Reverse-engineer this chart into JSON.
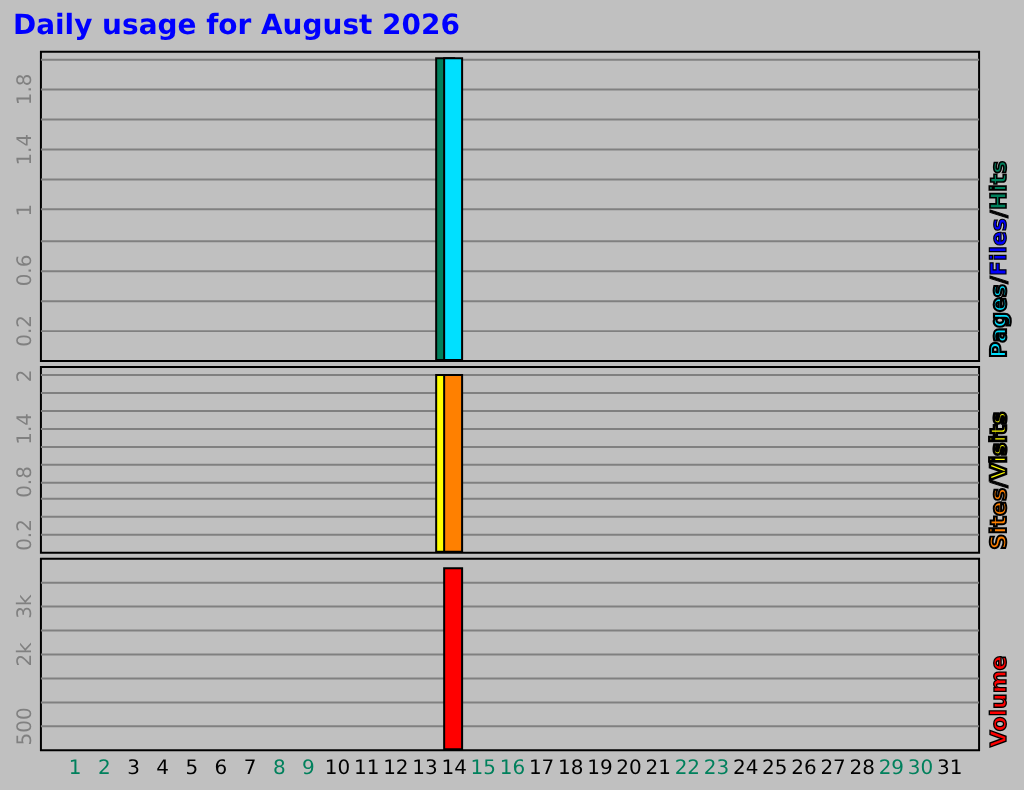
{
  "chart_data": [
    {
      "type": "bar",
      "title": "Daily usage for August 2026",
      "x": [
        "2026-08-01",
        "2026-08-02",
        "2026-08-03",
        "2026-08-04",
        "2026-08-05",
        "2026-08-06",
        "2026-08-07",
        "2026-08-08",
        "2026-08-09",
        "2026-08-10",
        "2026-08-11",
        "2026-08-12",
        "2026-08-13",
        "2026-08-14",
        "2026-08-15",
        "2026-08-16",
        "2026-08-17",
        "2026-08-18",
        "2026-08-19",
        "2026-08-20",
        "2026-08-21",
        "2026-08-22",
        "2026-08-23",
        "2026-08-24",
        "2026-08-25",
        "2026-08-26",
        "2026-08-27",
        "2026-08-28",
        "2026-08-29",
        "2026-08-30",
        "2026-08-31"
      ],
      "xlim": [
        "2026-07-31T04:00",
        "2026-08-31T16:00"
      ],
      "series": [
        {
          "name": "Hits",
          "color": "#00805c",
          "values": [
            0,
            0,
            0,
            0,
            0,
            0,
            0,
            0,
            0,
            0,
            0,
            0,
            0,
            2,
            0,
            0,
            0,
            0,
            0,
            0,
            0,
            0,
            0,
            0,
            0,
            0,
            0,
            0,
            0,
            0,
            0
          ]
        },
        {
          "name": "Files",
          "color": "#0000ff",
          "values": [
            0,
            0,
            0,
            0,
            0,
            0,
            0,
            0,
            0,
            0,
            0,
            0,
            0,
            0,
            0,
            0,
            0,
            0,
            0,
            0,
            0,
            0,
            0,
            0,
            0,
            0,
            0,
            0,
            0,
            0,
            0
          ]
        },
        {
          "name": "Pages",
          "color": "#00e0ff",
          "values": [
            0,
            0,
            0,
            0,
            0,
            0,
            0,
            0,
            0,
            0,
            0,
            0,
            0,
            2,
            0,
            0,
            0,
            0,
            0,
            0,
            0,
            0,
            0,
            0,
            0,
            0,
            0,
            0,
            0,
            0,
            0
          ]
        }
      ],
      "ylim": [
        0,
        2.05
      ],
      "yticks": [
        0.2,
        {
          "value": 0.4,
          "label": null
        },
        0.6,
        {
          "value": 0.8,
          "label": null
        },
        1,
        {
          "value": 1.2,
          "label": null
        },
        1.4,
        {
          "value": 1.6,
          "label": null
        },
        1.8,
        {
          "value": 2,
          "label": null
        }
      ],
      "annotations": [
        "/",
        "/"
      ],
      "grid": "y",
      "legend": "right",
      "tick_labels": "y"
    },
    {
      "type": "bar",
      "x": [
        "2026-08-01",
        "2026-08-02",
        "2026-08-03",
        "2026-08-04",
        "2026-08-05",
        "2026-08-06",
        "2026-08-07",
        "2026-08-08",
        "2026-08-09",
        "2026-08-10",
        "2026-08-11",
        "2026-08-12",
        "2026-08-13",
        "2026-08-14",
        "2026-08-15",
        "2026-08-16",
        "2026-08-17",
        "2026-08-18",
        "2026-08-19",
        "2026-08-20",
        "2026-08-21",
        "2026-08-22",
        "2026-08-23",
        "2026-08-24",
        "2026-08-25",
        "2026-08-26",
        "2026-08-27",
        "2026-08-28",
        "2026-08-29",
        "2026-08-30",
        "2026-08-31"
      ],
      "xlim": [
        "2026-07-31T04:00",
        "2026-08-31T16:00"
      ],
      "series": [
        {
          "name": "Visits",
          "color": "#ffff00",
          "values": [
            0,
            0,
            0,
            0,
            0,
            0,
            0,
            0,
            0,
            0,
            0,
            0,
            0,
            2,
            0,
            0,
            0,
            0,
            0,
            0,
            0,
            0,
            0,
            0,
            0,
            0,
            0,
            0,
            0,
            0,
            0
          ]
        },
        {
          "name": "Sites",
          "color": "#ff8000",
          "values": [
            0,
            0,
            0,
            0,
            0,
            0,
            0,
            0,
            0,
            0,
            0,
            0,
            0,
            2,
            0,
            0,
            0,
            0,
            0,
            0,
            0,
            0,
            0,
            0,
            0,
            0,
            0,
            0,
            0,
            0,
            0
          ]
        }
      ],
      "ylim": [
        0,
        2.1
      ],
      "yticks": [
        0.2,
        {
          "value": 0.4,
          "label": null
        },
        {
          "value": 0.6,
          "label": null
        },
        0.8,
        {
          "value": 1,
          "label": null
        },
        {
          "value": 1.2,
          "label": null
        },
        1.4,
        {
          "value": 1.6,
          "label": null
        },
        {
          "value": 1.8,
          "label": null
        },
        2
      ],
      "annotations": [
        "/"
      ],
      "grid": "y",
      "legend": "right",
      "tick_labels": "y"
    },
    {
      "type": "bar",
      "x": [
        "2026-08-01",
        "2026-08-02",
        "2026-08-03",
        "2026-08-04",
        "2026-08-05",
        "2026-08-06",
        "2026-08-07",
        "2026-08-08",
        "2026-08-09",
        "2026-08-10",
        "2026-08-11",
        "2026-08-12",
        "2026-08-13",
        "2026-08-14",
        "2026-08-15",
        "2026-08-16",
        "2026-08-17",
        "2026-08-18",
        "2026-08-19",
        "2026-08-20",
        "2026-08-21",
        "2026-08-22",
        "2026-08-23",
        "2026-08-24",
        "2026-08-25",
        "2026-08-26",
        "2026-08-27",
        "2026-08-28",
        "2026-08-29",
        "2026-08-30",
        "2026-08-31"
      ],
      "xlim": [
        "2026-07-31T04:00",
        "2026-08-31T16:00"
      ],
      "xticks": [
        {
          "value": "2026-08-01",
          "label": "1"
        },
        {
          "value": "2026-08-02",
          "label": "2"
        },
        {
          "value": "2026-08-03",
          "label": "3"
        },
        {
          "value": "2026-08-04",
          "label": "4"
        },
        {
          "value": "2026-08-05",
          "label": "5"
        },
        {
          "value": "2026-08-06",
          "label": "6"
        },
        {
          "value": "2026-08-07",
          "label": "7"
        },
        {
          "value": "2026-08-08",
          "label": "8"
        },
        {
          "value": "2026-08-09",
          "label": "9"
        },
        {
          "value": "2026-08-10",
          "label": "10"
        },
        {
          "value": "2026-08-11",
          "label": "11"
        },
        {
          "value": "2026-08-12",
          "label": "12"
        },
        {
          "value": "2026-08-13",
          "label": "13"
        },
        {
          "value": "2026-08-14",
          "label": "14"
        },
        {
          "value": "2026-08-15",
          "label": "15"
        },
        {
          "value": "2026-08-16",
          "label": "16"
        },
        {
          "value": "2026-08-17",
          "label": "17"
        },
        {
          "value": "2026-08-18",
          "label": "18"
        },
        {
          "value": "2026-08-19",
          "label": "19"
        },
        {
          "value": "2026-08-20",
          "label": "20"
        },
        {
          "value": "2026-08-21",
          "label": "21"
        },
        {
          "value": "2026-08-22",
          "label": "22"
        },
        {
          "value": "2026-08-23",
          "label": "23"
        },
        {
          "value": "2026-08-24",
          "label": "24"
        },
        {
          "value": "2026-08-25",
          "label": "25"
        },
        {
          "value": "2026-08-26",
          "label": "26"
        },
        {
          "value": "2026-08-27",
          "label": "27"
        },
        {
          "value": "2026-08-28",
          "label": "28"
        },
        {
          "value": "2026-08-29",
          "label": "29"
        },
        {
          "value": "2026-08-30",
          "label": "30"
        },
        {
          "value": "2026-08-31",
          "label": "31"
        }
      ],
      "series": [
        {
          "name": "Volume",
          "color": "#ff0000",
          "values": [
            0,
            0,
            0,
            0,
            0,
            0,
            0,
            0,
            0,
            0,
            0,
            0,
            0,
            3780,
            0,
            0,
            0,
            0,
            0,
            0,
            0,
            0,
            0,
            0,
            0,
            0,
            0,
            0,
            0,
            0,
            0
          ]
        }
      ],
      "ylim": [
        0,
        4000
      ],
      "yticks": [
        500,
        {
          "value": 1000,
          "label": null
        },
        {
          "value": 1500,
          "label": null
        },
        {
          "value": 2000,
          "label": "2k"
        },
        {
          "value": 2500,
          "label": null
        },
        {
          "value": 3000,
          "label": "3k"
        },
        {
          "value": 3500,
          "label": null
        }
      ],
      "grid": "y",
      "legend": "right"
    }
  ]
}
